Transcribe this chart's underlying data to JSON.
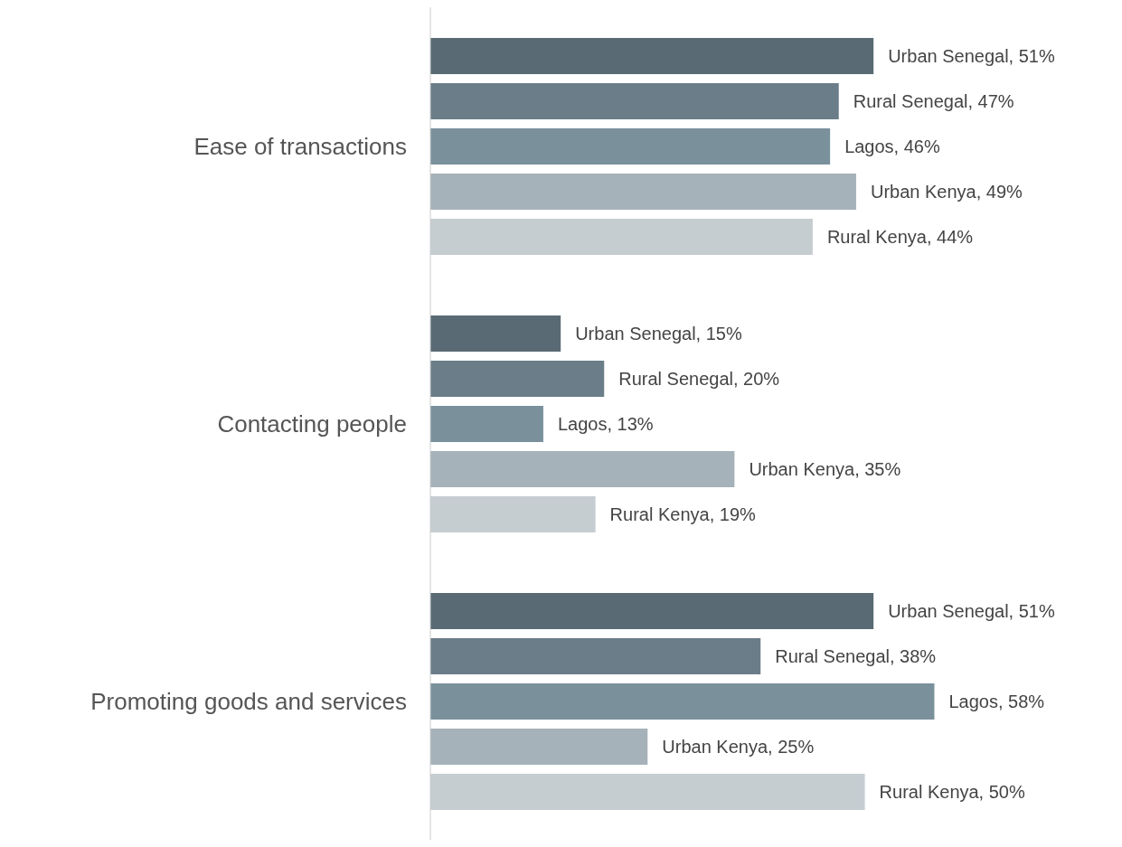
{
  "chart_data": {
    "type": "bar",
    "orientation": "horizontal",
    "categories": [
      "Ease of transactions",
      "Contacting people",
      "Promoting goods and services"
    ],
    "series": [
      {
        "color": "#596a74",
        "values": [
          51,
          15,
          51
        ],
        "value_labels": [
          "Urban Senegal, 51%",
          "Urban Senegal, 15%",
          "Urban Senegal, 51%"
        ]
      },
      {
        "color": "#6b7d88",
        "values": [
          47,
          20,
          38
        ],
        "value_labels": [
          "Rural Senegal, 47%",
          "Rural Senegal, 20%",
          "Rural Senegal, 38%"
        ]
      },
      {
        "color": "#7a919c",
        "values": [
          46,
          13,
          58
        ],
        "value_labels": [
          "Lagos, 46%",
          "Lagos, 13%",
          "Lagos, 58%"
        ]
      },
      {
        "color": "#a6b2b9",
        "values": [
          49,
          35,
          25
        ],
        "value_labels": [
          "Urban Kenya, 49%",
          "Urban Kenya, 35%",
          "Urban Kenya, 25%"
        ]
      },
      {
        "color": "#c5cdd1",
        "values": [
          44,
          19,
          50
        ],
        "value_labels": [
          "Rural Kenya, 44%",
          "Rural Kenya, 19%",
          "Rural Kenya, 50%"
        ]
      }
    ],
    "grid": false,
    "legend": false
  }
}
